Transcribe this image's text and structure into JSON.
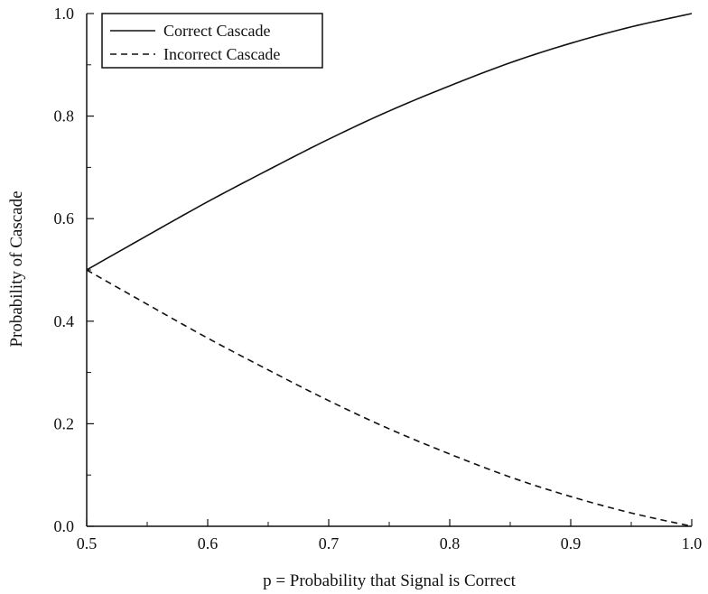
{
  "chart_data": {
    "type": "line",
    "title": "",
    "xlabel": "p = Probability that Signal is Correct",
    "ylabel": "Probability of Cascade",
    "xlim": [
      0.5,
      1.0
    ],
    "ylim": [
      0.0,
      1.0
    ],
    "x_ticks": [
      "0.5",
      "0.6",
      "0.7",
      "0.8",
      "0.9",
      "1.0"
    ],
    "y_ticks": [
      "0.0",
      "0.2",
      "0.4",
      "0.6",
      "0.8",
      "1.0"
    ],
    "grid": false,
    "legend_position": "top-left",
    "x": [
      0.5,
      0.55,
      0.6,
      0.65,
      0.7,
      0.75,
      0.8,
      0.85,
      0.9,
      0.95,
      1.0
    ],
    "series": [
      {
        "name": "Correct Cascade",
        "style": "solid",
        "color": "#111111",
        "values": [
          0.5,
          0.567,
          0.633,
          0.695,
          0.755,
          0.81,
          0.859,
          0.904,
          0.942,
          0.974,
          1.0
        ]
      },
      {
        "name": "Incorrect Cascade",
        "style": "dashed",
        "color": "#111111",
        "values": [
          0.5,
          0.433,
          0.367,
          0.305,
          0.245,
          0.19,
          0.141,
          0.096,
          0.058,
          0.026,
          0.0
        ]
      }
    ]
  }
}
